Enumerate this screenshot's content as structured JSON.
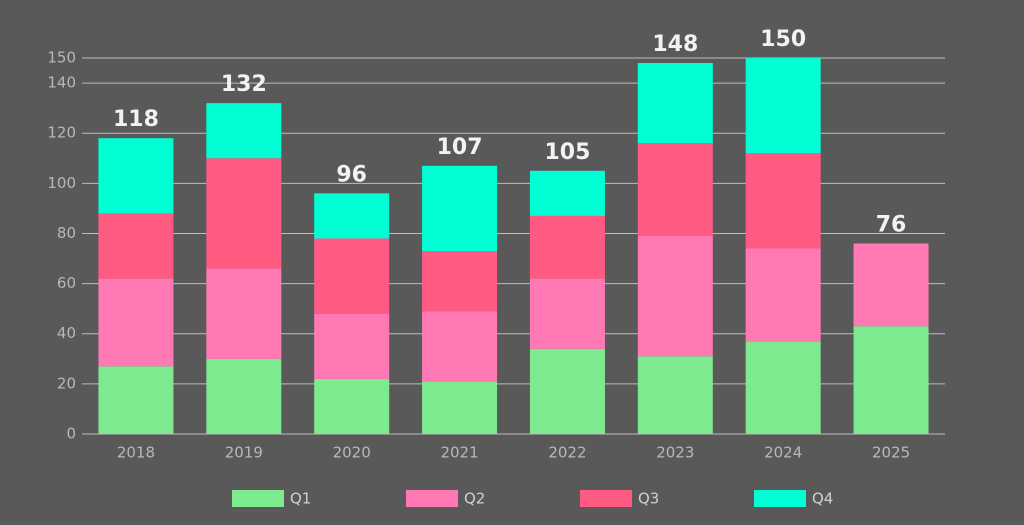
{
  "chart_data": {
    "type": "stacked-bar",
    "categories": [
      "2018",
      "2019",
      "2020",
      "2021",
      "2022",
      "2023",
      "2024",
      "2025"
    ],
    "series": [
      {
        "name": "Q1",
        "color": "#7eea8f",
        "values": [
          27,
          30,
          22,
          21,
          34,
          31,
          37,
          43
        ]
      },
      {
        "name": "Q2",
        "color": "#ff79b4",
        "values": [
          35,
          36,
          26,
          28,
          28,
          48,
          37,
          33
        ]
      },
      {
        "name": "Q3",
        "color": "#ff5b82",
        "values": [
          26,
          44,
          30,
          24,
          25,
          37,
          38,
          null
        ]
      },
      {
        "name": "Q4",
        "color": "#00ffd5",
        "values": [
          30,
          22,
          18,
          34,
          18,
          32,
          38,
          null
        ]
      }
    ],
    "totals": [
      118,
      132,
      96,
      107,
      105,
      148,
      150,
      76
    ],
    "ylim": [
      0,
      150
    ],
    "yticks": [
      0,
      20,
      40,
      60,
      80,
      100,
      120,
      140,
      150
    ],
    "grid": true
  }
}
